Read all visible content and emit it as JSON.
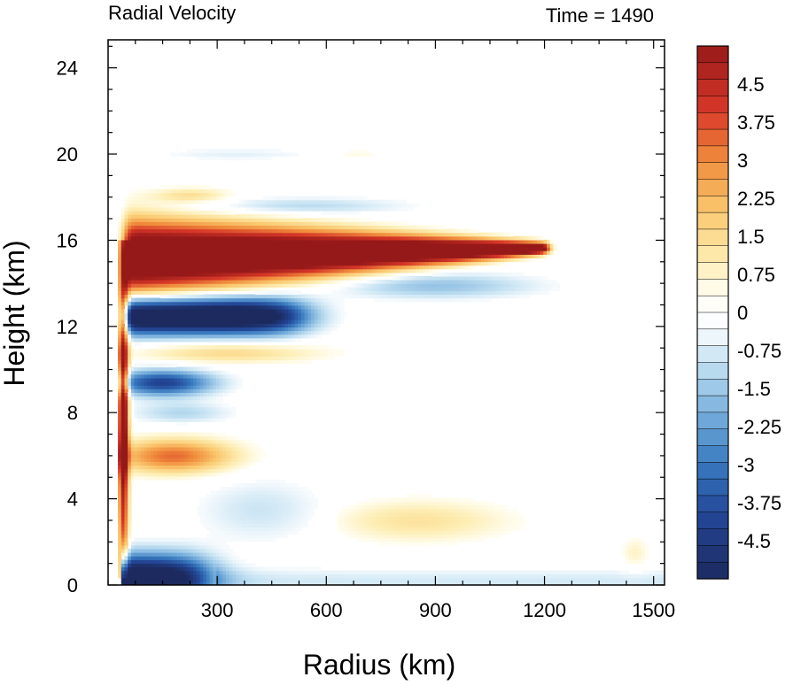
{
  "chart_data": {
    "type": "heatmap",
    "title_left": "Radial Velocity",
    "title_right": "Time = 1490",
    "xlabel": "Radius (km)",
    "ylabel": "Height (km)",
    "x_range": [
      0,
      1530
    ],
    "y_range": [
      0,
      25.3
    ],
    "x_ticks": [
      300,
      600,
      900,
      1200,
      1500
    ],
    "y_ticks": [
      0,
      4,
      8,
      12,
      16,
      20,
      24
    ],
    "colorbar": {
      "levels": 32,
      "min": -5.25,
      "max": 5.25,
      "labels": [
        "4.5",
        "3.75",
        "3",
        "2.25",
        "1.5",
        "0.75",
        "0",
        "-0.75",
        "-1.5",
        "-2.25",
        "-3",
        "-3.75",
        "-4.5"
      ],
      "label_values": [
        4.5,
        3.75,
        3,
        2.25,
        1.5,
        0.75,
        0,
        -0.75,
        -1.5,
        -2.25,
        -3,
        -3.75,
        -4.5
      ]
    },
    "features": [
      {
        "name": "upper outflow jet",
        "sign": "positive",
        "x_range_km": [
          55,
          1210
        ],
        "z_center_km": [
          15.2,
          15.6
        ],
        "max_value": 5.25
      },
      {
        "name": "eyewall inflow/outflow column",
        "sign": "positive",
        "x_range_km": [
          30,
          60
        ],
        "z_range_km": [
          0.3,
          16
        ]
      },
      {
        "name": "return inflow below outflow",
        "sign": "negative",
        "x_range_km": [
          60,
          600
        ],
        "z_center_km": 12.3,
        "max_value": -5.25
      },
      {
        "name": "boundary layer inflow",
        "sign": "negative",
        "x_range_km": [
          30,
          360
        ],
        "z_range_km": [
          0,
          1.4
        ],
        "max_value": -5.25
      },
      {
        "name": "mid-level outflow band",
        "sign": "positive",
        "x_range_km": [
          60,
          380
        ],
        "z_center_km": 6.0,
        "max_value": 3.4
      },
      {
        "name": "mid-level inflow band",
        "sign": "negative",
        "x_range_km": [
          60,
          330
        ],
        "z_center_km": 9.3,
        "max_value": -4.5
      },
      {
        "name": "weak outflow band",
        "sign": "positive",
        "x_range_km": [
          60,
          620
        ],
        "z_center_km": 10.8,
        "max_value": 1.6
      },
      {
        "name": "low-level outflow",
        "sign": "positive",
        "x_range_km": [
          620,
          1150
        ],
        "z_center_km": 3.0,
        "max_value": 1.3
      }
    ]
  }
}
